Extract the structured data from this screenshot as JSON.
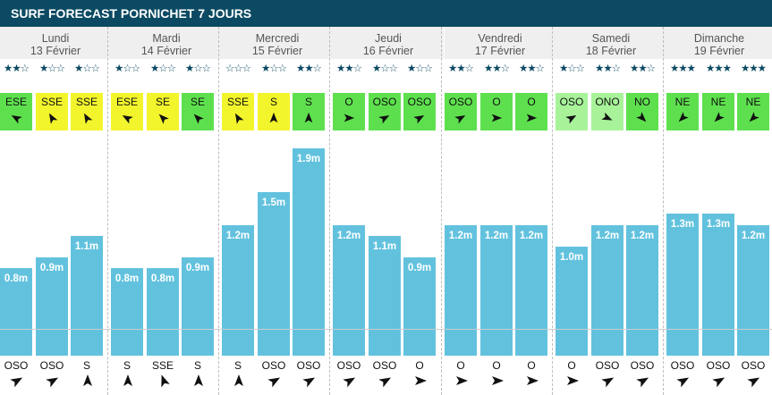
{
  "title": "SURF FORECAST PORNICHET 7 JOURS",
  "colors": {
    "header_bg": "#0b4a62",
    "bar": "#62c2de",
    "wind_yellow": "#f3f52c",
    "wind_green": "#5ee04e",
    "wind_lightgreen": "#a8f39a",
    "stars": "#0b4a62"
  },
  "days": [
    {
      "day": "Lundi",
      "date": "13 Février",
      "slots": [
        {
          "stars": 2,
          "wind_dir": "ESE",
          "wind_color": "green",
          "wind_angle": 300,
          "height_m": 0.8,
          "height_label": "0.8m",
          "swell_dir": "OSO",
          "swell_angle": 60
        },
        {
          "stars": 1,
          "wind_dir": "SSE",
          "wind_color": "yellow",
          "wind_angle": 330,
          "height_m": 0.9,
          "height_label": "0.9m",
          "swell_dir": "OSO",
          "swell_angle": 60
        },
        {
          "stars": 1,
          "wind_dir": "SSE",
          "wind_color": "yellow",
          "wind_angle": 330,
          "height_m": 1.1,
          "height_label": "1.1m",
          "swell_dir": "S",
          "swell_angle": 0
        }
      ]
    },
    {
      "day": "Mardi",
      "date": "14 Février",
      "slots": [
        {
          "stars": 1,
          "wind_dir": "ESE",
          "wind_color": "yellow",
          "wind_angle": 300,
          "height_m": 0.8,
          "height_label": "0.8m",
          "swell_dir": "S",
          "swell_angle": 0
        },
        {
          "stars": 1,
          "wind_dir": "SE",
          "wind_color": "yellow",
          "wind_angle": 315,
          "height_m": 0.8,
          "height_label": "0.8m",
          "swell_dir": "SSE",
          "swell_angle": 340
        },
        {
          "stars": 1,
          "wind_dir": "SE",
          "wind_color": "green",
          "wind_angle": 315,
          "height_m": 0.9,
          "height_label": "0.9m",
          "swell_dir": "S",
          "swell_angle": 0
        }
      ]
    },
    {
      "day": "Mercredi",
      "date": "15 Février",
      "slots": [
        {
          "stars": 0,
          "wind_dir": "SSE",
          "wind_color": "yellow",
          "wind_angle": 330,
          "height_m": 1.2,
          "height_label": "1.2m",
          "swell_dir": "S",
          "swell_angle": 0
        },
        {
          "stars": 1,
          "wind_dir": "S",
          "wind_color": "yellow",
          "wind_angle": 0,
          "height_m": 1.5,
          "height_label": "1.5m",
          "swell_dir": "OSO",
          "swell_angle": 60
        },
        {
          "stars": 2,
          "wind_dir": "S",
          "wind_color": "green",
          "wind_angle": 0,
          "height_m": 1.9,
          "height_label": "1.9m",
          "swell_dir": "OSO",
          "swell_angle": 60
        }
      ]
    },
    {
      "day": "Jeudi",
      "date": "16 Février",
      "slots": [
        {
          "stars": 2,
          "wind_dir": "O",
          "wind_color": "green",
          "wind_angle": 90,
          "height_m": 1.2,
          "height_label": "1.2m",
          "swell_dir": "OSO",
          "swell_angle": 60
        },
        {
          "stars": 1,
          "wind_dir": "OSO",
          "wind_color": "green",
          "wind_angle": 60,
          "height_m": 1.1,
          "height_label": "1.1m",
          "swell_dir": "OSO",
          "swell_angle": 60
        },
        {
          "stars": 1,
          "wind_dir": "OSO",
          "wind_color": "green",
          "wind_angle": 60,
          "height_m": 0.9,
          "height_label": "0.9m",
          "swell_dir": "O",
          "swell_angle": 90
        }
      ]
    },
    {
      "day": "Vendredi",
      "date": "17 Février",
      "slots": [
        {
          "stars": 2,
          "wind_dir": "OSO",
          "wind_color": "green",
          "wind_angle": 60,
          "height_m": 1.2,
          "height_label": "1.2m",
          "swell_dir": "O",
          "swell_angle": 90
        },
        {
          "stars": 2,
          "wind_dir": "O",
          "wind_color": "green",
          "wind_angle": 90,
          "height_m": 1.2,
          "height_label": "1.2m",
          "swell_dir": "O",
          "swell_angle": 90
        },
        {
          "stars": 2,
          "wind_dir": "O",
          "wind_color": "green",
          "wind_angle": 90,
          "height_m": 1.2,
          "height_label": "1.2m",
          "swell_dir": "O",
          "swell_angle": 90
        }
      ]
    },
    {
      "day": "Samedi",
      "date": "18 Février",
      "slots": [
        {
          "stars": 1,
          "wind_dir": "OSO",
          "wind_color": "lightgreen",
          "wind_angle": 60,
          "height_m": 1.0,
          "height_label": "1.0m",
          "swell_dir": "O",
          "swell_angle": 90
        },
        {
          "stars": 2,
          "wind_dir": "ONO",
          "wind_color": "lightgreen",
          "wind_angle": 115,
          "height_m": 1.2,
          "height_label": "1.2m",
          "swell_dir": "OSO",
          "swell_angle": 60
        },
        {
          "stars": 2,
          "wind_dir": "NO",
          "wind_color": "green",
          "wind_angle": 135,
          "height_m": 1.2,
          "height_label": "1.2m",
          "swell_dir": "OSO",
          "swell_angle": 60
        }
      ]
    },
    {
      "day": "Dimanche",
      "date": "19 Février",
      "slots": [
        {
          "stars": 3,
          "wind_dir": "NE",
          "wind_color": "green",
          "wind_angle": 225,
          "height_m": 1.3,
          "height_label": "1.3m",
          "swell_dir": "OSO",
          "swell_angle": 60
        },
        {
          "stars": 3,
          "wind_dir": "NE",
          "wind_color": "green",
          "wind_angle": 225,
          "height_m": 1.3,
          "height_label": "1.3m",
          "swell_dir": "OSO",
          "swell_angle": 60
        },
        {
          "stars": 3,
          "wind_dir": "NE",
          "wind_color": "green",
          "wind_angle": 225,
          "height_m": 1.2,
          "height_label": "1.2m",
          "swell_dir": "OSO",
          "swell_angle": 60
        }
      ]
    }
  ]
}
